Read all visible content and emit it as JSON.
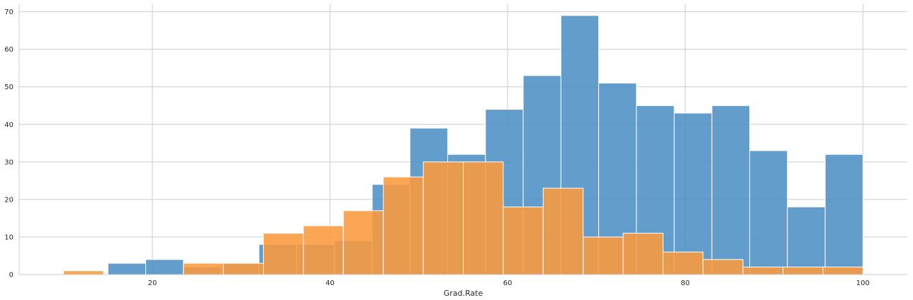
{
  "chart_data": {
    "type": "histogram",
    "xlabel": "Grad.Rate",
    "ylabel": "",
    "xlim": [
      5,
      105
    ],
    "ylim": [
      0,
      72
    ],
    "xticks": [
      20,
      40,
      60,
      80,
      100
    ],
    "yticks": [
      0,
      10,
      20,
      30,
      40,
      50,
      60,
      70
    ],
    "grid": true,
    "series": [
      {
        "color": "#4c8fc4",
        "bins": [
          [
            15.0,
            19.25,
            3
          ],
          [
            19.25,
            23.5,
            4
          ],
          [
            23.5,
            27.75,
            2
          ],
          [
            27.75,
            32.0,
            3
          ],
          [
            32.0,
            36.25,
            8
          ],
          [
            36.25,
            40.5,
            8
          ],
          [
            40.5,
            44.75,
            9
          ],
          [
            44.75,
            49.0,
            24
          ],
          [
            49.0,
            53.25,
            39
          ],
          [
            53.25,
            57.5,
            32
          ],
          [
            57.5,
            61.75,
            44
          ],
          [
            61.75,
            66.0,
            53
          ],
          [
            66.0,
            70.25,
            69
          ],
          [
            70.25,
            74.5,
            51
          ],
          [
            74.5,
            78.75,
            45
          ],
          [
            78.75,
            83.0,
            43
          ],
          [
            83.0,
            87.25,
            45
          ],
          [
            87.25,
            91.5,
            33
          ],
          [
            91.5,
            95.75,
            18
          ],
          [
            95.75,
            100.0,
            32
          ]
        ]
      },
      {
        "color": "#fb9a3e",
        "bins": [
          [
            10.0,
            14.5,
            1
          ],
          [
            14.5,
            19.0,
            0
          ],
          [
            19.0,
            23.5,
            0
          ],
          [
            23.5,
            28.0,
            3
          ],
          [
            28.0,
            32.5,
            3
          ],
          [
            32.5,
            37.0,
            11
          ],
          [
            37.0,
            41.5,
            13
          ],
          [
            41.5,
            46.0,
            17
          ],
          [
            46.0,
            50.5,
            26
          ],
          [
            50.5,
            55.0,
            30
          ],
          [
            55.0,
            59.5,
            30
          ],
          [
            59.5,
            64.0,
            18
          ],
          [
            64.0,
            68.5,
            23
          ],
          [
            68.5,
            73.0,
            10
          ],
          [
            73.0,
            77.5,
            11
          ],
          [
            77.5,
            82.0,
            6
          ],
          [
            82.0,
            86.5,
            4
          ],
          [
            86.5,
            91.0,
            2
          ],
          [
            91.0,
            95.5,
            2
          ],
          [
            95.5,
            100.0,
            2
          ]
        ]
      }
    ]
  }
}
